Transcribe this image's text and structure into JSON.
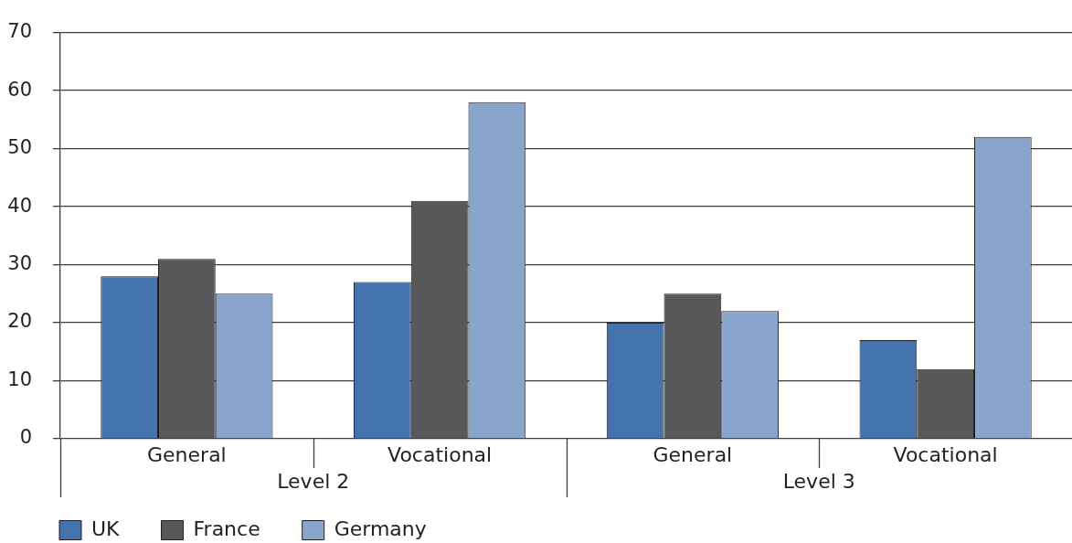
{
  "chart_data": {
    "type": "bar",
    "categories": [
      "General",
      "Vocational",
      "General",
      "Vocational"
    ],
    "annotations": [
      "Level 2",
      "Level 3"
    ],
    "series": [
      {
        "name": "UK",
        "color": "#4473ad",
        "values": [
          28,
          27,
          20,
          17
        ]
      },
      {
        "name": "France",
        "color": "#57585a",
        "values": [
          31,
          41,
          25,
          12
        ]
      },
      {
        "name": "Germany",
        "color": "#8aa5cc",
        "values": [
          25,
          58,
          22,
          52
        ]
      }
    ],
    "ylim": [
      0,
      70
    ],
    "yticks": [
      0,
      10,
      20,
      30,
      40,
      50,
      60,
      70
    ],
    "grid": "y",
    "legend": "bottom left"
  }
}
